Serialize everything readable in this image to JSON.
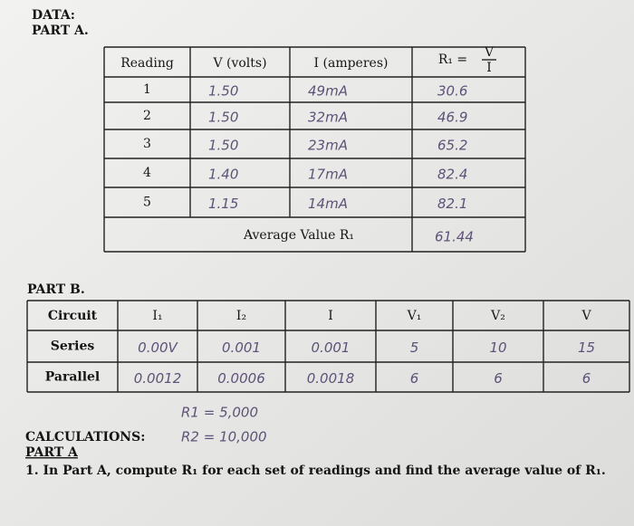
{
  "header": {
    "data": "DATA:",
    "part": "PART A."
  },
  "table_a": {
    "columns": [
      "Reading",
      "V (volts)",
      "I (amperes)"
    ],
    "r_column": {
      "lhs": "R₁ =",
      "num": "V",
      "den": "I"
    },
    "rows": [
      [
        "1",
        "1.50",
        "49mA",
        "30.6"
      ],
      [
        "2",
        "1.50",
        "32mA",
        "46.9"
      ],
      [
        "3",
        "1.50",
        "23mA",
        "65.2"
      ],
      [
        "4",
        "1.40",
        "17mA",
        "82.4"
      ],
      [
        "5",
        "1.15",
        "14mA",
        "82.1"
      ]
    ],
    "average": {
      "label": "Average Value R₁",
      "value": "61.44"
    }
  },
  "table_b": {
    "title": "PART B.",
    "columns": [
      "Circuit",
      "I₁",
      "I₂",
      "I",
      "V₁",
      "V₂",
      "V"
    ],
    "rows": [
      [
        "Series",
        "0.00V",
        "0.001",
        "0.001",
        "5",
        "10",
        "15"
      ],
      [
        "Parallel",
        "0.0012",
        "0.0006",
        "0.0018",
        "6",
        "6",
        "6"
      ]
    ]
  },
  "notes": [
    "R1 = 5,000",
    "R2 = 10,000"
  ],
  "calculations": {
    "title": "CALCULATIONS:",
    "part": "PART A",
    "question": "1. In Part A, compute R₁ for each set of readings and find the average value of R₁."
  }
}
